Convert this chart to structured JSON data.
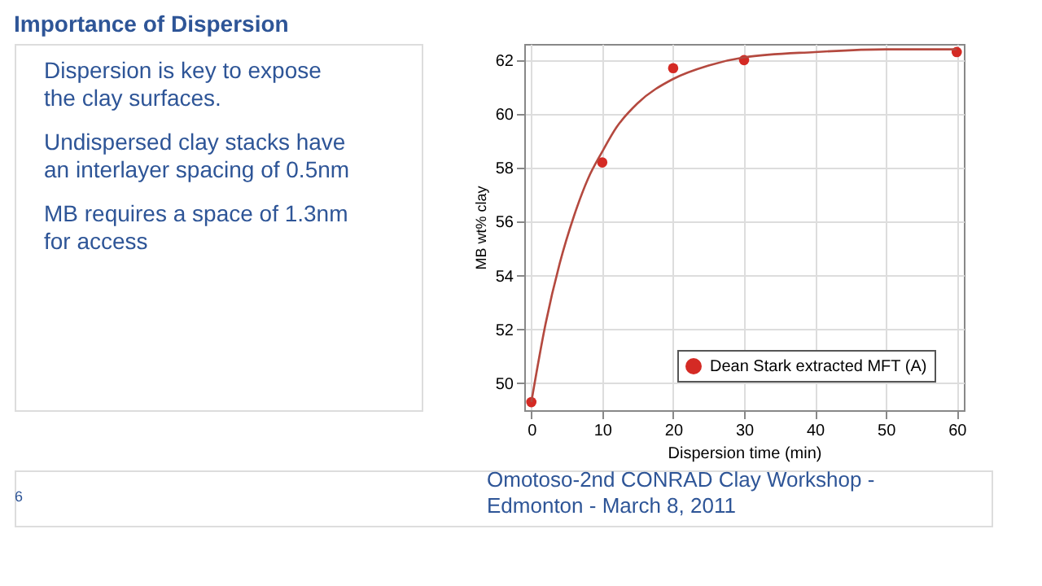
{
  "chart_data": {
    "type": "scatter",
    "title": "Importance of Dispersion",
    "xlabel": "Dispersion time (min)",
    "ylabel": "MB wt% clay",
    "x": [
      0,
      10,
      20,
      30,
      60
    ],
    "series": [
      {
        "name": "Dean Stark extracted MFT (A)",
        "color": "#d42a24",
        "values": [
          49.3,
          58.2,
          61.7,
          62.0,
          62.3
        ]
      },
      {
        "type": "line",
        "marker": "none",
        "color": "#b4493f",
        "x": [
          0,
          2,
          4,
          6,
          8,
          10,
          12,
          15,
          20,
          25,
          30,
          40,
          50,
          60
        ],
        "values": [
          49.3,
          52.2,
          54.45,
          56.2,
          57.6,
          58.6,
          59.5,
          60.4,
          61.3,
          61.8,
          62.1,
          62.3,
          62.4,
          62.4
        ]
      }
    ],
    "xlim": [
      -1,
      61
    ],
    "xticks": [
      0,
      10,
      20,
      30,
      40,
      50,
      60
    ],
    "ylim": [
      49,
      62.6
    ],
    "yticks": [
      50,
      52,
      54,
      56,
      58,
      60,
      62
    ],
    "grid": true,
    "legend": "bottom right",
    "marker": "circle",
    "annotations": [
      "Dispersion is key to expose the clay surfaces.",
      "Undispersed clay stacks have an interlayer spacing of 0.5nm",
      "MB requires a space of 1.3nm for access",
      "Omotoso-2nd CONRAD Clay Workshop - Edmonton - March 8, 2011",
      "6"
    ]
  }
}
